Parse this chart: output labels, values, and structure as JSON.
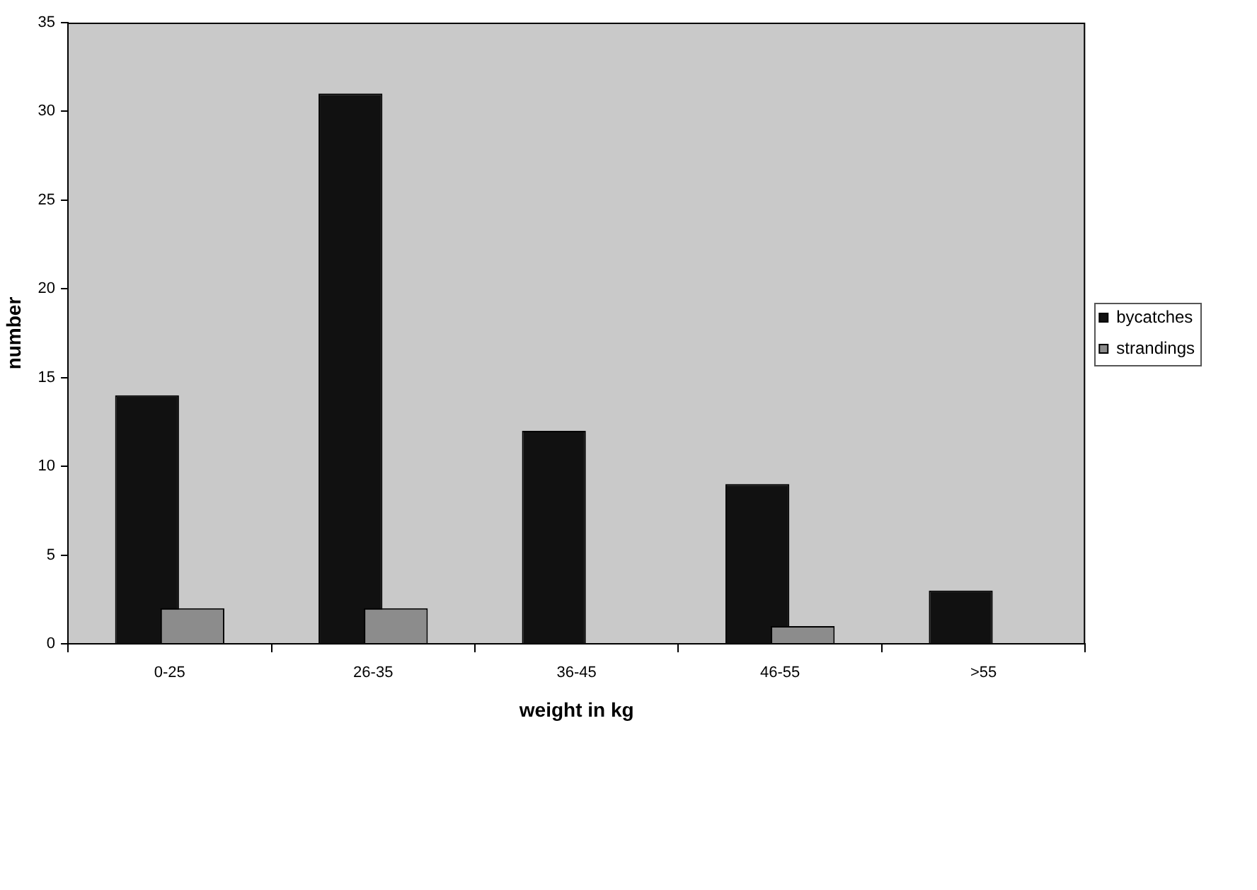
{
  "chart_data": {
    "type": "bar",
    "xlabel": "weight in kg",
    "ylabel": "number",
    "categories": [
      "0-25",
      "26-35",
      "36-45",
      "46-55",
      ">55"
    ],
    "series": [
      {
        "name": "bycatches",
        "color": "#111111",
        "values": [
          14,
          31,
          12,
          9,
          3
        ]
      },
      {
        "name": "strandings",
        "color": "#8c8c8c",
        "values": [
          2,
          2,
          null,
          1,
          null
        ]
      }
    ],
    "ylim": [
      0,
      35
    ],
    "yticks": [
      0,
      5,
      10,
      15,
      20,
      25,
      30,
      35
    ],
    "grid": false,
    "legend": "right"
  }
}
